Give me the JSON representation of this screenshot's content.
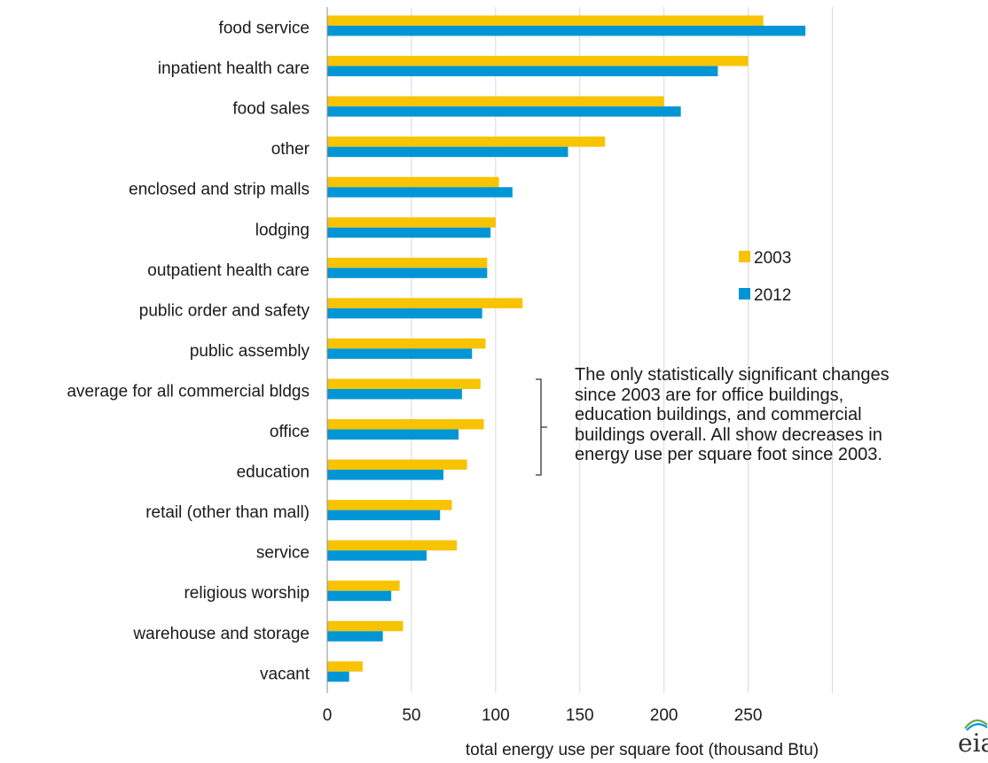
{
  "chart_data": {
    "type": "bar",
    "orientation": "horizontal",
    "categories": [
      "food service",
      "inpatient health care",
      "food sales",
      "other",
      "enclosed and strip malls",
      "lodging",
      "outpatient health care",
      "public order and safety",
      "public assembly",
      "average for all commercial bldgs",
      "office",
      "education",
      "retail (other than mall)",
      "service",
      "religious worship",
      "warehouse and storage",
      "vacant"
    ],
    "series": [
      {
        "name": "2003",
        "color": "#f8c300",
        "values": [
          259,
          250,
          200,
          165,
          102,
          100,
          95,
          116,
          94,
          91,
          93,
          83,
          74,
          77,
          43,
          45,
          21
        ]
      },
      {
        "name": "2012",
        "color": "#0096d6",
        "values": [
          284,
          232,
          210,
          143,
          110,
          97,
          95,
          92,
          86,
          80,
          78,
          69,
          67,
          59,
          38,
          33,
          13
        ]
      }
    ],
    "xlabel": "total energy use per square foot (thousand Btu)",
    "ylabel": "",
    "xlim": [
      0,
      300
    ],
    "xticks": [
      0,
      50,
      100,
      150,
      200,
      250
    ],
    "grid": "vertical",
    "legend_position": "right-middle",
    "annotation": "The only statistically significant changes since 2003 are for office buildings, education buildings, and commercial buildings overall. All show decreases in energy use per square foot since 2003."
  },
  "logo_text": "eia"
}
